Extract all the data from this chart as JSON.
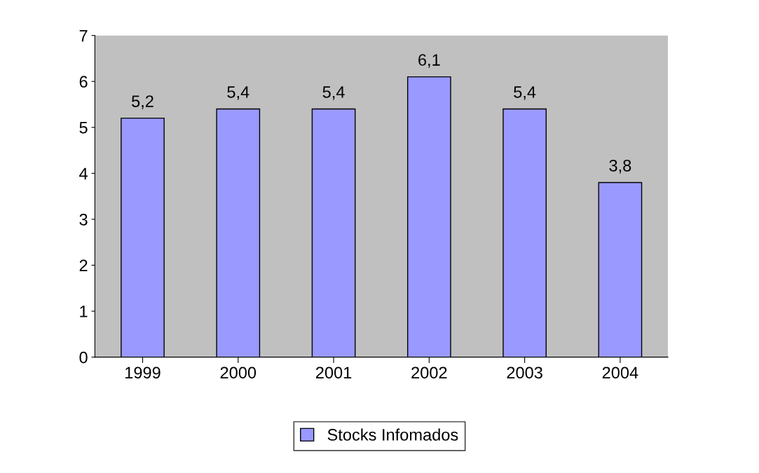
{
  "chart_data": {
    "type": "bar",
    "categories": [
      "1999",
      "2000",
      "2001",
      "2002",
      "2003",
      "2004"
    ],
    "series": [
      {
        "name": "Stocks Infomados",
        "color": "#9999ff",
        "values": [
          5.2,
          5.4,
          5.4,
          6.1,
          5.4,
          3.8
        ],
        "value_labels": [
          "5,2",
          "5,4",
          "5,4",
          "6,1",
          "5,4",
          "3,8"
        ]
      }
    ],
    "ylim": [
      0,
      7
    ],
    "yticks": [
      0,
      1,
      2,
      3,
      4,
      5,
      6,
      7
    ],
    "grid": false,
    "legend": "bottom"
  }
}
